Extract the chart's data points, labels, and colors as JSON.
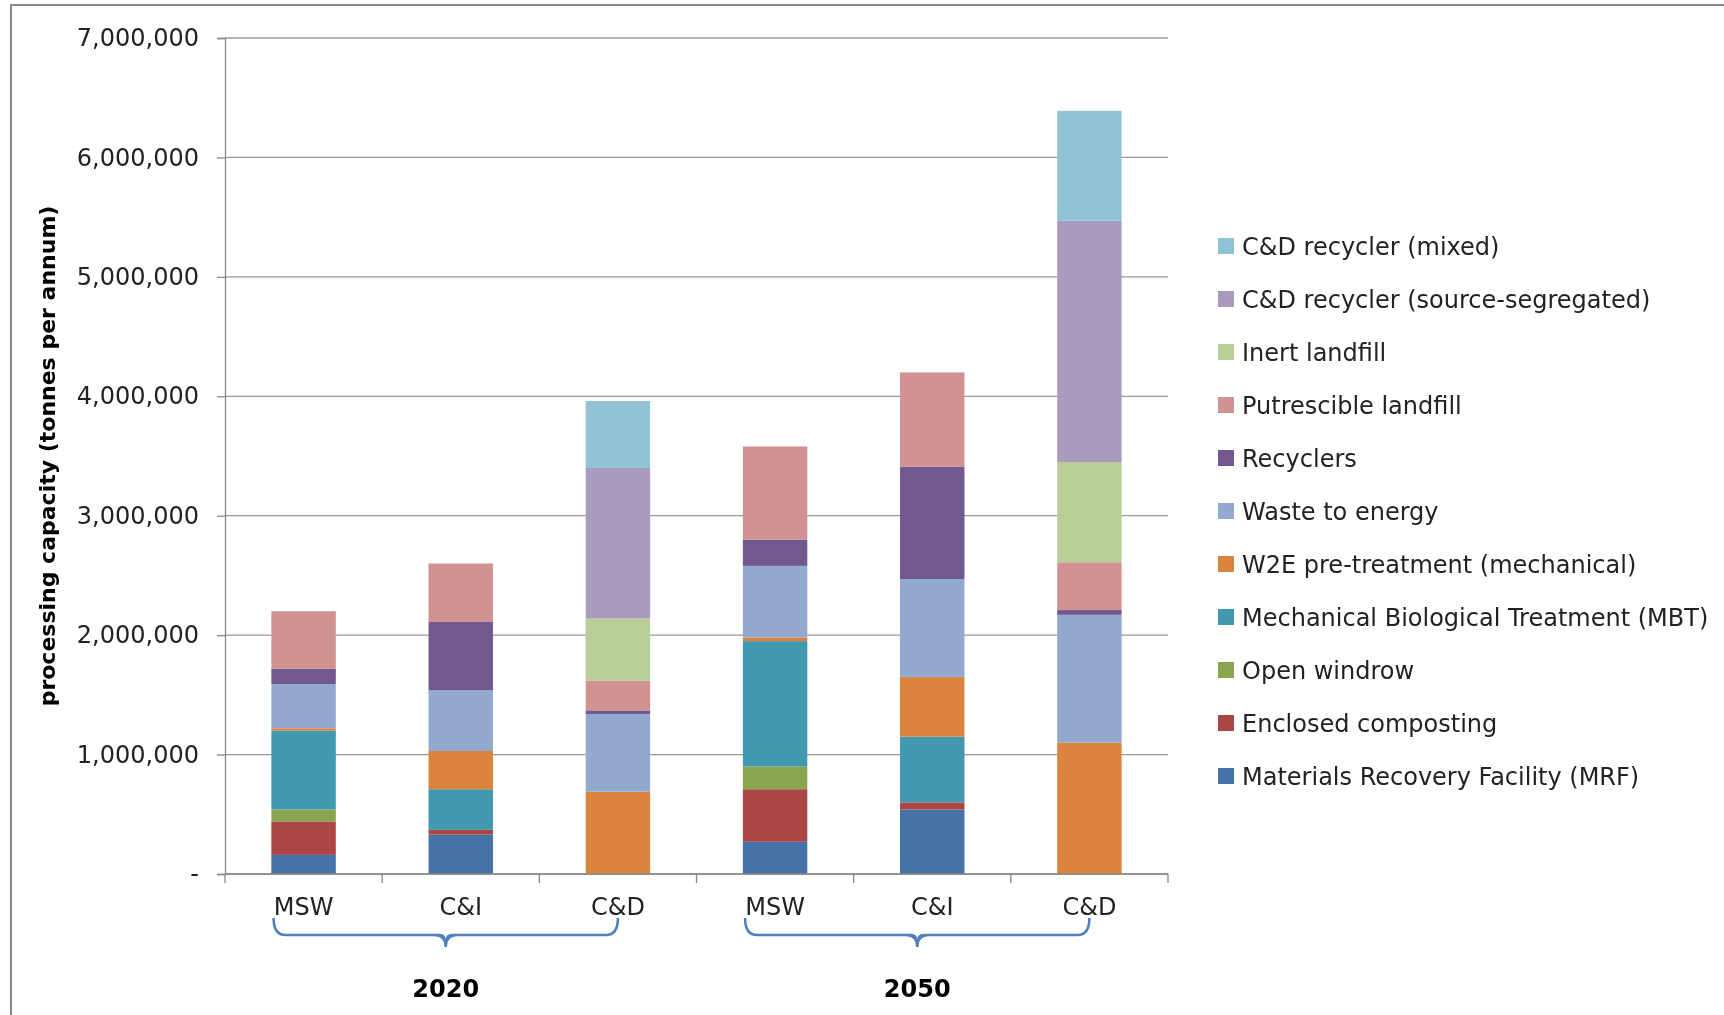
{
  "chart_data": {
    "type": "bar",
    "stacked": true,
    "ylabel": "processing capacity (tonnes per annum)",
    "categories": [
      "MSW",
      "C&I",
      "C&D",
      "MSW",
      "C&I",
      "C&D"
    ],
    "annotations": [
      "2020",
      "2050"
    ],
    "ylim": [
      0,
      7000000
    ],
    "yticks": [
      {
        "value": 0,
        "label": "-"
      },
      {
        "value": 1000000,
        "label": "1,000,000"
      },
      {
        "value": 2000000,
        "label": "2,000,000"
      },
      {
        "value": 3000000,
        "label": "3,000,000"
      },
      {
        "value": 4000000,
        "label": "4,000,000"
      },
      {
        "value": 5000000,
        "label": "5,000,000"
      },
      {
        "value": 6000000,
        "label": "6,000,000"
      },
      {
        "value": 7000000,
        "label": "7,000,000"
      }
    ],
    "grid": "y",
    "legend": "right",
    "series": [
      {
        "name": "Materials Recovery Facility (MRF)",
        "color": "#4572a7",
        "values": [
          160000,
          330000,
          0,
          270000,
          540000,
          0
        ]
      },
      {
        "name": "Enclosed composting",
        "color": "#aa4643",
        "values": [
          280000,
          40000,
          0,
          440000,
          60000,
          0
        ]
      },
      {
        "name": "Open windrow",
        "color": "#89a54e",
        "values": [
          100000,
          0,
          0,
          190000,
          0,
          0
        ]
      },
      {
        "name": "Mechanical Biological Treatment (MBT)",
        "color": "#4198af",
        "values": [
          660000,
          340000,
          0,
          1050000,
          550000,
          0
        ]
      },
      {
        "name": "W2E pre-treatment (mechanical)",
        "color": "#db843d",
        "values": [
          20000,
          320000,
          690000,
          30000,
          500000,
          1100000
        ]
      },
      {
        "name": "Waste to energy",
        "color": "#93a9cf",
        "values": [
          370000,
          510000,
          650000,
          600000,
          820000,
          1070000
        ]
      },
      {
        "name": "Recyclers",
        "color": "#71588f",
        "values": [
          130000,
          570000,
          30000,
          220000,
          940000,
          40000
        ]
      },
      {
        "name": "Putrescible landfill",
        "color": "#d19392",
        "values": [
          480000,
          490000,
          250000,
          780000,
          790000,
          400000
        ]
      },
      {
        "name": "Inert landfill",
        "color": "#b9cd96",
        "values": [
          0,
          0,
          520000,
          0,
          0,
          840000
        ]
      },
      {
        "name": "C&D recycler (source-segregated)",
        "color": "#a99bbd",
        "values": [
          0,
          0,
          1260000,
          0,
          0,
          2020000
        ]
      },
      {
        "name": "C&D recycler (mixed)",
        "color": "#92c3d4",
        "values": [
          0,
          0,
          560000,
          0,
          0,
          920000
        ]
      }
    ]
  }
}
